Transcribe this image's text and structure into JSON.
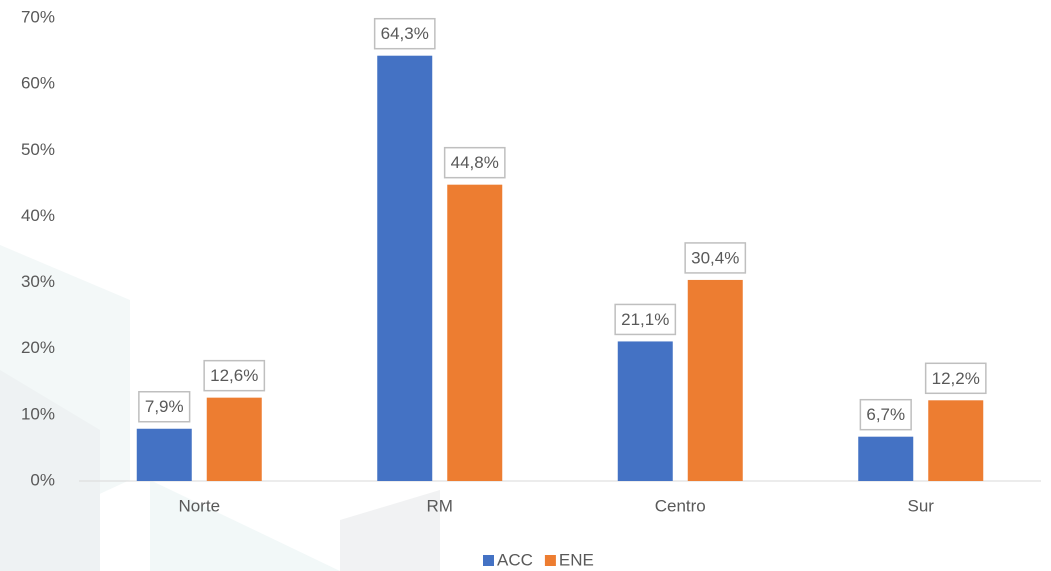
{
  "chart_data": {
    "type": "bar",
    "categories": [
      "Norte",
      "RM",
      "Centro",
      "Sur"
    ],
    "series": [
      {
        "name": "ACC",
        "color": "#4472c4",
        "values": [
          7.9,
          64.3,
          21.1,
          6.7
        ],
        "value_labels": [
          "7,9%",
          "64,3%",
          "21,1%",
          "6,7%"
        ]
      },
      {
        "name": "ENE",
        "color": "#ed7d31",
        "values": [
          12.6,
          44.8,
          30.4,
          12.2
        ],
        "value_labels": [
          "12,6%",
          "44,8%",
          "30,4%",
          "12,2%"
        ]
      }
    ],
    "ylim": [
      0,
      70
    ],
    "yticks": [
      {
        "value": 0,
        "label": "0%"
      },
      {
        "value": 10,
        "label": "10%"
      },
      {
        "value": 20,
        "label": "20%"
      },
      {
        "value": 30,
        "label": "30%"
      },
      {
        "value": 40,
        "label": "40%"
      },
      {
        "value": 50,
        "label": "50%"
      },
      {
        "value": 60,
        "label": "60%"
      },
      {
        "value": 70,
        "label": "70%"
      }
    ],
    "grid": false,
    "legend": "bottom"
  }
}
